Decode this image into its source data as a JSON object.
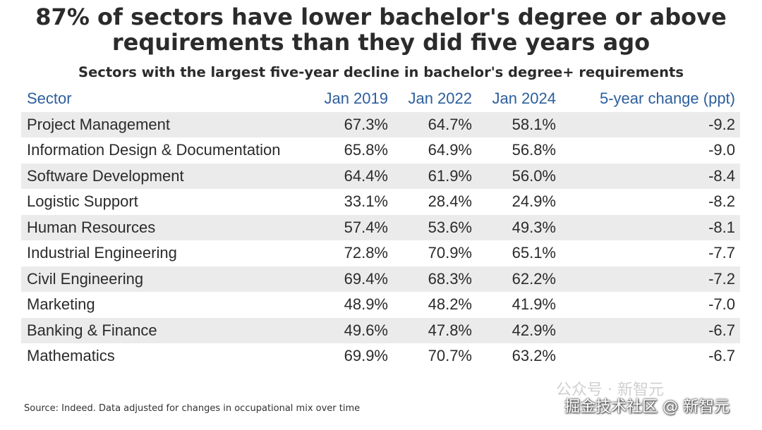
{
  "chart_data": {
    "type": "table",
    "title_lines": [
      "87% of sectors have lower bachelor's degree or above",
      "requirements than they did five years ago"
    ],
    "subtitle": "Sectors with the largest five-year decline in bachelor's degree+ requirements",
    "columns": [
      "Sector",
      "Jan 2019",
      "Jan 2022",
      "Jan 2024",
      "5-year change (ppt)"
    ],
    "rows": [
      [
        "Project Management",
        "67.3%",
        "64.7%",
        "58.1%",
        "-9.2"
      ],
      [
        "Information Design & Documentation",
        "65.8%",
        "64.9%",
        "56.8%",
        "-9.0"
      ],
      [
        "Software Development",
        "64.4%",
        "61.9%",
        "56.0%",
        "-8.4"
      ],
      [
        "Logistic Support",
        "33.1%",
        "28.4%",
        "24.9%",
        "-8.2"
      ],
      [
        "Human Resources",
        "57.4%",
        "53.6%",
        "49.3%",
        "-8.1"
      ],
      [
        "Industrial Engineering",
        "72.8%",
        "70.9%",
        "65.1%",
        "-7.7"
      ],
      [
        "Civil Engineering",
        "69.4%",
        "68.3%",
        "62.2%",
        "-7.2"
      ],
      [
        "Marketing",
        "48.9%",
        "48.2%",
        "41.9%",
        "-7.0"
      ],
      [
        "Banking & Finance",
        "49.6%",
        "47.8%",
        "42.9%",
        "-6.7"
      ],
      [
        "Mathematics",
        "69.9%",
        "70.7%",
        "63.2%",
        "-6.7"
      ]
    ],
    "source": "Source: Indeed. Data adjusted for changes in occupational mix over time",
    "header_color": "#2c5f9e",
    "stripe_color": "#ebebeb"
  },
  "watermark": {
    "top": "公众号 · 新智元",
    "bottom": "掘金技术社区 @ 新智元"
  }
}
